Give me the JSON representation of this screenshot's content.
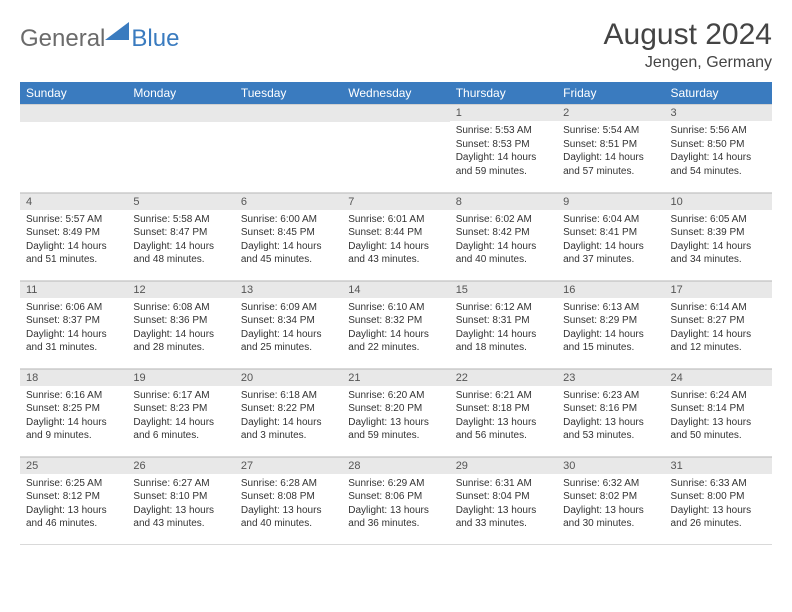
{
  "logo": {
    "general": "General",
    "blue": "Blue"
  },
  "title": "August 2024",
  "location": "Jengen, Germany",
  "colors": {
    "header_bg": "#3a7bbf",
    "header_text": "#ffffff",
    "daynum_bg": "#e8e8e8",
    "text": "#333333",
    "logo_gray": "#6b6b6b",
    "logo_blue": "#3a7bbf"
  },
  "day_headers": [
    "Sunday",
    "Monday",
    "Tuesday",
    "Wednesday",
    "Thursday",
    "Friday",
    "Saturday"
  ],
  "first_weekday_index": 4,
  "days": [
    {
      "n": 1,
      "sunrise": "5:53 AM",
      "sunset": "8:53 PM",
      "daylight": "14 hours and 59 minutes."
    },
    {
      "n": 2,
      "sunrise": "5:54 AM",
      "sunset": "8:51 PM",
      "daylight": "14 hours and 57 minutes."
    },
    {
      "n": 3,
      "sunrise": "5:56 AM",
      "sunset": "8:50 PM",
      "daylight": "14 hours and 54 minutes."
    },
    {
      "n": 4,
      "sunrise": "5:57 AM",
      "sunset": "8:49 PM",
      "daylight": "14 hours and 51 minutes."
    },
    {
      "n": 5,
      "sunrise": "5:58 AM",
      "sunset": "8:47 PM",
      "daylight": "14 hours and 48 minutes."
    },
    {
      "n": 6,
      "sunrise": "6:00 AM",
      "sunset": "8:45 PM",
      "daylight": "14 hours and 45 minutes."
    },
    {
      "n": 7,
      "sunrise": "6:01 AM",
      "sunset": "8:44 PM",
      "daylight": "14 hours and 43 minutes."
    },
    {
      "n": 8,
      "sunrise": "6:02 AM",
      "sunset": "8:42 PM",
      "daylight": "14 hours and 40 minutes."
    },
    {
      "n": 9,
      "sunrise": "6:04 AM",
      "sunset": "8:41 PM",
      "daylight": "14 hours and 37 minutes."
    },
    {
      "n": 10,
      "sunrise": "6:05 AM",
      "sunset": "8:39 PM",
      "daylight": "14 hours and 34 minutes."
    },
    {
      "n": 11,
      "sunrise": "6:06 AM",
      "sunset": "8:37 PM",
      "daylight": "14 hours and 31 minutes."
    },
    {
      "n": 12,
      "sunrise": "6:08 AM",
      "sunset": "8:36 PM",
      "daylight": "14 hours and 28 minutes."
    },
    {
      "n": 13,
      "sunrise": "6:09 AM",
      "sunset": "8:34 PM",
      "daylight": "14 hours and 25 minutes."
    },
    {
      "n": 14,
      "sunrise": "6:10 AM",
      "sunset": "8:32 PM",
      "daylight": "14 hours and 22 minutes."
    },
    {
      "n": 15,
      "sunrise": "6:12 AM",
      "sunset": "8:31 PM",
      "daylight": "14 hours and 18 minutes."
    },
    {
      "n": 16,
      "sunrise": "6:13 AM",
      "sunset": "8:29 PM",
      "daylight": "14 hours and 15 minutes."
    },
    {
      "n": 17,
      "sunrise": "6:14 AM",
      "sunset": "8:27 PM",
      "daylight": "14 hours and 12 minutes."
    },
    {
      "n": 18,
      "sunrise": "6:16 AM",
      "sunset": "8:25 PM",
      "daylight": "14 hours and 9 minutes."
    },
    {
      "n": 19,
      "sunrise": "6:17 AM",
      "sunset": "8:23 PM",
      "daylight": "14 hours and 6 minutes."
    },
    {
      "n": 20,
      "sunrise": "6:18 AM",
      "sunset": "8:22 PM",
      "daylight": "14 hours and 3 minutes."
    },
    {
      "n": 21,
      "sunrise": "6:20 AM",
      "sunset": "8:20 PM",
      "daylight": "13 hours and 59 minutes."
    },
    {
      "n": 22,
      "sunrise": "6:21 AM",
      "sunset": "8:18 PM",
      "daylight": "13 hours and 56 minutes."
    },
    {
      "n": 23,
      "sunrise": "6:23 AM",
      "sunset": "8:16 PM",
      "daylight": "13 hours and 53 minutes."
    },
    {
      "n": 24,
      "sunrise": "6:24 AM",
      "sunset": "8:14 PM",
      "daylight": "13 hours and 50 minutes."
    },
    {
      "n": 25,
      "sunrise": "6:25 AM",
      "sunset": "8:12 PM",
      "daylight": "13 hours and 46 minutes."
    },
    {
      "n": 26,
      "sunrise": "6:27 AM",
      "sunset": "8:10 PM",
      "daylight": "13 hours and 43 minutes."
    },
    {
      "n": 27,
      "sunrise": "6:28 AM",
      "sunset": "8:08 PM",
      "daylight": "13 hours and 40 minutes."
    },
    {
      "n": 28,
      "sunrise": "6:29 AM",
      "sunset": "8:06 PM",
      "daylight": "13 hours and 36 minutes."
    },
    {
      "n": 29,
      "sunrise": "6:31 AM",
      "sunset": "8:04 PM",
      "daylight": "13 hours and 33 minutes."
    },
    {
      "n": 30,
      "sunrise": "6:32 AM",
      "sunset": "8:02 PM",
      "daylight": "13 hours and 30 minutes."
    },
    {
      "n": 31,
      "sunrise": "6:33 AM",
      "sunset": "8:00 PM",
      "daylight": "13 hours and 26 minutes."
    }
  ],
  "labels": {
    "sunrise": "Sunrise:",
    "sunset": "Sunset:",
    "daylight": "Daylight:"
  }
}
